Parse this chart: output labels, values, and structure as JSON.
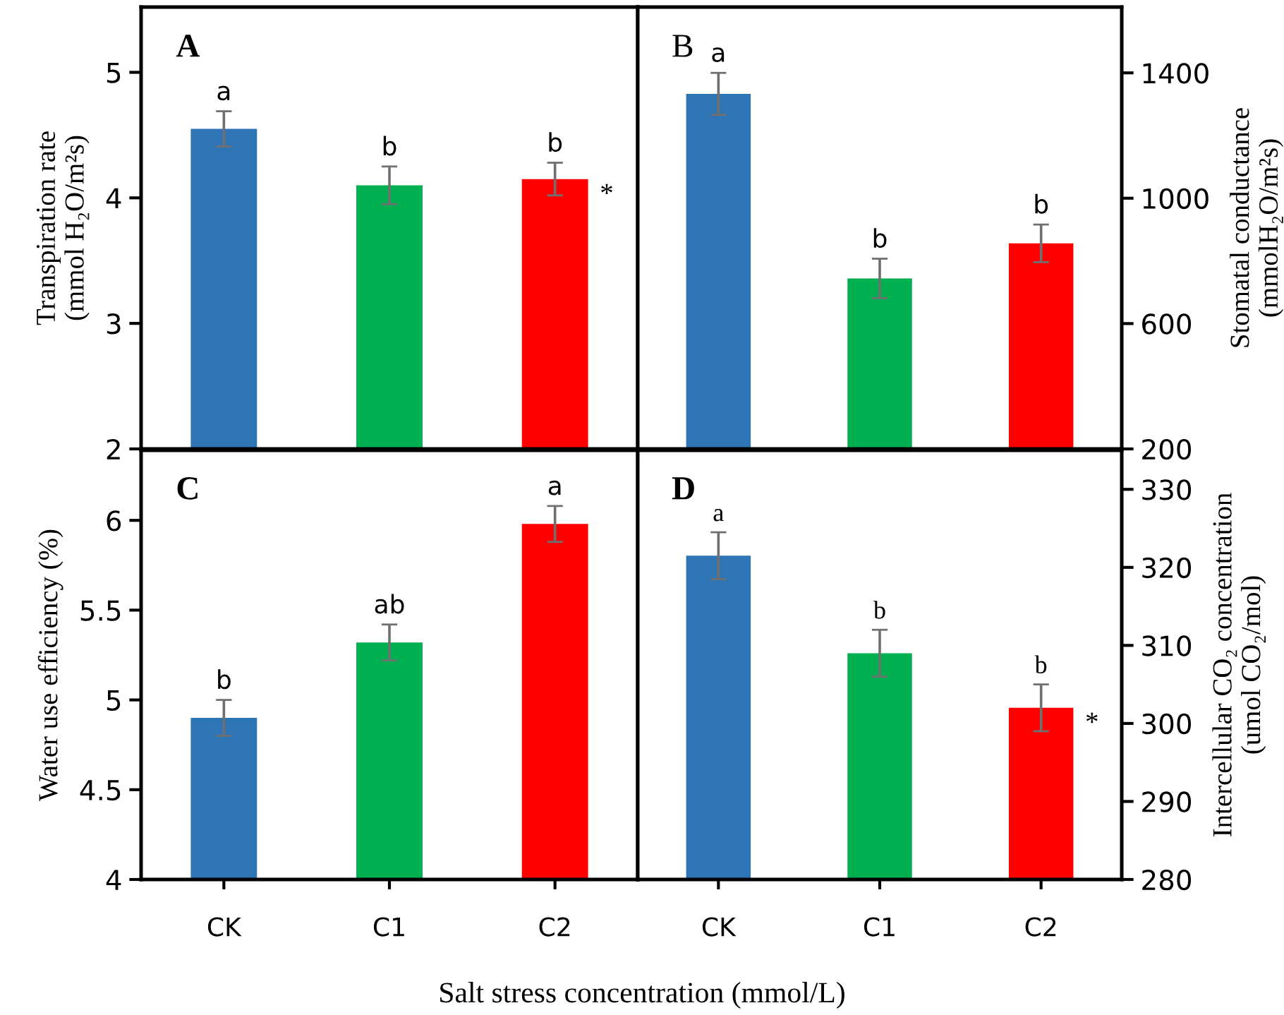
{
  "chart_data": [
    {
      "type": "bar",
      "title": "A",
      "categories": [
        "CK",
        "C1",
        "C2"
      ],
      "colors": [
        "#2e75b6",
        "#00b050",
        "#ff0000"
      ],
      "series": [
        {
          "values": [
            4.55,
            4.1,
            4.15
          ],
          "errors": [
            0.14,
            0.15,
            0.13
          ],
          "value_labels": [
            "a",
            "b",
            "b"
          ]
        }
      ],
      "ylabel": "Transpiration rate\n(mmol H₂O/m²s)",
      "ylim": [
        2,
        5.52
      ],
      "yticks": [
        2,
        3,
        4,
        5
      ],
      "tick_labels": "y",
      "annotations": [
        {
          "text": "*",
          "x": "C2",
          "y": 4.15
        }
      ]
    },
    {
      "type": "bar",
      "title": "B",
      "categories": [
        "CK",
        "C1",
        "C2"
      ],
      "colors": [
        "#2e75b6",
        "#00b050",
        "#ff0000"
      ],
      "series": [
        {
          "values": [
            1333,
            744,
            856
          ],
          "errors": [
            67,
            63,
            60
          ],
          "value_labels": [
            "a",
            "b",
            "b"
          ]
        }
      ],
      "ylabel": "Stomatal conductance\n(mmolH₂O/m²s)",
      "ylim": [
        200,
        1610
      ],
      "yticks": [
        200,
        600,
        1000,
        1400
      ],
      "tick_labels": "y"
    },
    {
      "type": "bar",
      "title": "C",
      "categories": [
        "CK",
        "C1",
        "C2"
      ],
      "colors": [
        "#2e75b6",
        "#00b050",
        "#ff0000"
      ],
      "series": [
        {
          "values": [
            4.9,
            5.32,
            5.98
          ],
          "errors": [
            0.1,
            0.1,
            0.1
          ],
          "value_labels": [
            "b",
            "ab",
            "a"
          ]
        }
      ],
      "ylabel": "Water use efficiency (%)",
      "ylim": [
        4,
        6.39
      ],
      "yticks": [
        4,
        4.5,
        5,
        5.5,
        6
      ],
      "xlabel": "Salt stress concentration (mmol/L)"
    },
    {
      "type": "bar",
      "title": "D",
      "categories": [
        "CK",
        "C1",
        "C2"
      ],
      "colors": [
        "#2e75b6",
        "#00b050",
        "#ff0000"
      ],
      "series": [
        {
          "values": [
            321.5,
            309,
            302
          ],
          "errors": [
            3,
            3,
            3
          ],
          "value_labels": [
            "a",
            "b",
            "b"
          ]
        }
      ],
      "ylabel": "Intercellular CO₂ concentration\n(umol CO₂/mol)",
      "ylim": [
        280,
        335
      ],
      "yticks": [
        280,
        290,
        300,
        310,
        320,
        330
      ],
      "annotations": [
        {
          "text": "*",
          "x": "C2",
          "y": 302
        }
      ]
    }
  ]
}
